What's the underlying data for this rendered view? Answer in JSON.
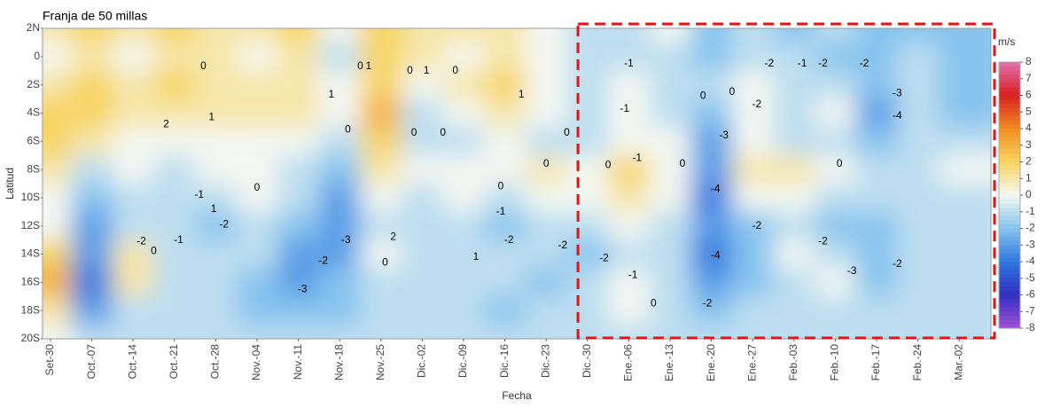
{
  "chart_data": {
    "type": "heatmap",
    "title": "Franja de 50 millas",
    "x_label": "Fecha",
    "y_label": "Latitud",
    "categories": [
      "Set-30",
      "Oct.-07",
      "Oct.-14",
      "Oct.-21",
      "Oct.-28",
      "Nov.-04",
      "Nov.-11",
      "Nov.-18",
      "Nov.-25",
      "Dic.-02",
      "Dic.-09",
      "Dic.-16",
      "Dic.-23",
      "Dic.-30",
      "Ene.-06",
      "Ene.-13",
      "Ene.-20",
      "Ene.-27",
      "Feb.-03",
      "Feb.-10",
      "Feb.-17",
      "Feb.-24",
      "Mar.-02"
    ],
    "lat": [
      2,
      0,
      -2,
      -4,
      -6,
      -8,
      -10,
      -12,
      -14,
      -16,
      -18,
      -20
    ],
    "ylim": [
      2,
      -20
    ],
    "yticks": [
      {
        "value": 2,
        "label": "2N"
      },
      0,
      {
        "value": -2,
        "label": "2S"
      },
      {
        "value": -4,
        "label": "4S"
      },
      {
        "value": -6,
        "label": "6S"
      },
      {
        "value": -8,
        "label": "8S"
      },
      {
        "value": -10,
        "label": "10S"
      },
      {
        "value": -12,
        "label": "12S"
      },
      {
        "value": -14,
        "label": "14S"
      },
      {
        "value": -16,
        "label": "16S"
      },
      {
        "value": -18,
        "label": "18S"
      },
      {
        "value": -20,
        "label": "20S"
      }
    ],
    "z": [
      [
        1,
        2,
        1,
        2,
        1,
        1,
        2,
        0,
        2,
        1,
        1,
        1,
        0,
        -1,
        -1,
        0,
        -2,
        -1,
        -2,
        -1,
        -2,
        -2,
        -2
      ],
      [
        0,
        1,
        0,
        1,
        1,
        0,
        1,
        -1,
        2,
        1,
        0,
        1,
        0,
        -1,
        -1,
        -1,
        -2,
        -1,
        -1,
        -2,
        -2,
        -1,
        -2
      ],
      [
        1,
        2,
        1,
        2,
        1,
        1,
        1,
        0,
        2,
        0,
        1,
        2,
        0,
        -1,
        0,
        -1,
        -1,
        0,
        -1,
        -1,
        -2,
        -1,
        -2
      ],
      [
        2,
        2,
        1,
        1,
        1,
        1,
        1,
        0,
        3,
        -1,
        0,
        1,
        0,
        -1,
        0,
        -1,
        -2,
        0,
        -1,
        0,
        -3,
        -1,
        -2
      ],
      [
        2,
        1,
        0,
        0,
        0,
        0,
        0,
        -1,
        2,
        -1,
        -1,
        0,
        -1,
        -1,
        0,
        0,
        -3,
        0,
        -1,
        -1,
        -2,
        -1,
        -1
      ],
      [
        1,
        -1,
        0,
        -1,
        0,
        0,
        -1,
        -2,
        1,
        0,
        0,
        0,
        1,
        0,
        2,
        0,
        -3,
        1,
        1,
        0,
        -1,
        -1,
        0
      ],
      [
        0,
        -2,
        -1,
        -1,
        -1,
        0,
        -1,
        -3,
        0,
        -1,
        0,
        -1,
        0,
        0,
        1,
        0,
        -4,
        0,
        0,
        -1,
        -1,
        -1,
        -1
      ],
      [
        0,
        -3,
        -1,
        -1,
        -2,
        -1,
        -2,
        -3,
        -1,
        -1,
        -1,
        -2,
        -1,
        -1,
        0,
        -1,
        -3,
        -2,
        -1,
        -2,
        -2,
        -1,
        -1
      ],
      [
        2,
        -3,
        1,
        -1,
        -1,
        -1,
        -3,
        -3,
        0,
        -1,
        -1,
        -1,
        -1,
        -2,
        -1,
        -1,
        -4,
        -2,
        0,
        -1,
        -2,
        -1,
        -1
      ],
      [
        3,
        -4,
        1,
        -1,
        -1,
        -2,
        -3,
        -2,
        -1,
        -1,
        -1,
        -1,
        -2,
        -1,
        0,
        -1,
        -3,
        -2,
        -1,
        0,
        -2,
        -1,
        -1
      ],
      [
        1,
        -3,
        -1,
        -1,
        -1,
        -2,
        -2,
        -2,
        -1,
        -1,
        -1,
        -2,
        -1,
        -1,
        0,
        -1,
        -2,
        -1,
        -1,
        -1,
        -1,
        -1,
        -1
      ],
      [
        0,
        -1,
        -1,
        -1,
        -1,
        -1,
        -1,
        -1,
        -1,
        -1,
        -1,
        -1,
        -1,
        -1,
        -1,
        -1,
        -1,
        -1,
        -1,
        -1,
        -1,
        -1,
        -1
      ]
    ],
    "contour_labels": [
      {
        "x": 3.7,
        "lat": -0.7,
        "value": 0
      },
      {
        "x": 7.5,
        "lat": -0.7,
        "value": 0
      },
      {
        "x": 7.7,
        "lat": -0.7,
        "value": 1
      },
      {
        "x": 8.7,
        "lat": -1.0,
        "value": 0
      },
      {
        "x": 9.1,
        "lat": -1.0,
        "value": 1
      },
      {
        "x": 9.8,
        "lat": -1.0,
        "value": 0
      },
      {
        "x": 11.4,
        "lat": -2.7,
        "value": 1
      },
      {
        "x": 6.8,
        "lat": -2.7,
        "value": 1
      },
      {
        "x": 2.8,
        "lat": -4.8,
        "value": 2
      },
      {
        "x": 3.9,
        "lat": -4.3,
        "value": 1
      },
      {
        "x": 7.2,
        "lat": -5.2,
        "value": 0
      },
      {
        "x": 8.8,
        "lat": -5.4,
        "value": 0
      },
      {
        "x": 9.5,
        "lat": -5.4,
        "value": 0
      },
      {
        "x": 14.0,
        "lat": -0.5,
        "value": -1
      },
      {
        "x": 17.4,
        "lat": -0.5,
        "value": -2
      },
      {
        "x": 18.2,
        "lat": -0.5,
        "value": -1
      },
      {
        "x": 18.7,
        "lat": -0.5,
        "value": -2
      },
      {
        "x": 19.7,
        "lat": -0.5,
        "value": -2
      },
      {
        "x": 15.8,
        "lat": -2.8,
        "value": 0
      },
      {
        "x": 16.5,
        "lat": -2.5,
        "value": 0
      },
      {
        "x": 17.1,
        "lat": -3.4,
        "value": -2
      },
      {
        "x": 20.5,
        "lat": -2.6,
        "value": -3
      },
      {
        "x": 20.5,
        "lat": -4.2,
        "value": -4
      },
      {
        "x": 13.9,
        "lat": -3.7,
        "value": -1
      },
      {
        "x": 16.3,
        "lat": -5.6,
        "value": -3
      },
      {
        "x": 16.1,
        "lat": -9.4,
        "value": -4
      },
      {
        "x": 17.1,
        "lat": -12.0,
        "value": -2
      },
      {
        "x": 18.7,
        "lat": -13.1,
        "value": -2
      },
      {
        "x": 19.4,
        "lat": -15.2,
        "value": -3
      },
      {
        "x": 20.5,
        "lat": -14.7,
        "value": -2
      },
      {
        "x": 16.1,
        "lat": -14.1,
        "value": -4
      },
      {
        "x": 13.4,
        "lat": -14.3,
        "value": -2
      },
      {
        "x": 15.9,
        "lat": -17.5,
        "value": -2
      },
      {
        "x": 14.6,
        "lat": -17.5,
        "value": 0
      },
      {
        "x": 14.1,
        "lat": -15.5,
        "value": -1
      },
      {
        "x": 15.3,
        "lat": -7.6,
        "value": 0
      },
      {
        "x": 13.5,
        "lat": -7.7,
        "value": 0
      },
      {
        "x": 14.2,
        "lat": -7.2,
        "value": -1
      },
      {
        "x": 19.1,
        "lat": -7.6,
        "value": 0
      },
      {
        "x": 12.0,
        "lat": -7.6,
        "value": 0
      },
      {
        "x": 10.9,
        "lat": -9.2,
        "value": 0
      },
      {
        "x": 10.9,
        "lat": -11.0,
        "value": -1
      },
      {
        "x": 11.1,
        "lat": -13.0,
        "value": -2
      },
      {
        "x": 12.4,
        "lat": -13.4,
        "value": -2
      },
      {
        "x": 10.3,
        "lat": -14.2,
        "value": 1
      },
      {
        "x": 8.3,
        "lat": -12.8,
        "value": 2
      },
      {
        "x": 7.15,
        "lat": -13.0,
        "value": -3
      },
      {
        "x": 6.6,
        "lat": -14.5,
        "value": -2
      },
      {
        "x": 6.1,
        "lat": -16.5,
        "value": -3
      },
      {
        "x": 8.1,
        "lat": -14.6,
        "value": 0
      },
      {
        "x": 5.0,
        "lat": -9.3,
        "value": 0
      },
      {
        "x": 4.2,
        "lat": -11.9,
        "value": -2
      },
      {
        "x": 3.95,
        "lat": -10.8,
        "value": 1
      },
      {
        "x": 3.6,
        "lat": -9.8,
        "value": -1
      },
      {
        "x": 2.5,
        "lat": -13.8,
        "value": 0
      },
      {
        "x": 2.2,
        "lat": -13.1,
        "value": -2
      },
      {
        "x": 3.1,
        "lat": -13.0,
        "value": -1
      },
      {
        "x": 12.5,
        "lat": -5.4,
        "value": 0
      }
    ],
    "colorbar": {
      "label": "m/s",
      "zlim": [
        -8,
        8
      ],
      "ticks": [
        8,
        7,
        6,
        5,
        4,
        3,
        2,
        1,
        0,
        -1,
        -2,
        -3,
        -4,
        -5,
        -6,
        -7,
        -8
      ],
      "colors": [
        "#a24fd8",
        "#3030c0",
        "#2e78e0",
        "#86c4ee",
        "#f4f8f2",
        "#f8d460",
        "#f08c20",
        "#d82020",
        "#e070b0"
      ]
    },
    "highlight": {
      "from": "Dic.-30",
      "color": "#e81010"
    }
  }
}
